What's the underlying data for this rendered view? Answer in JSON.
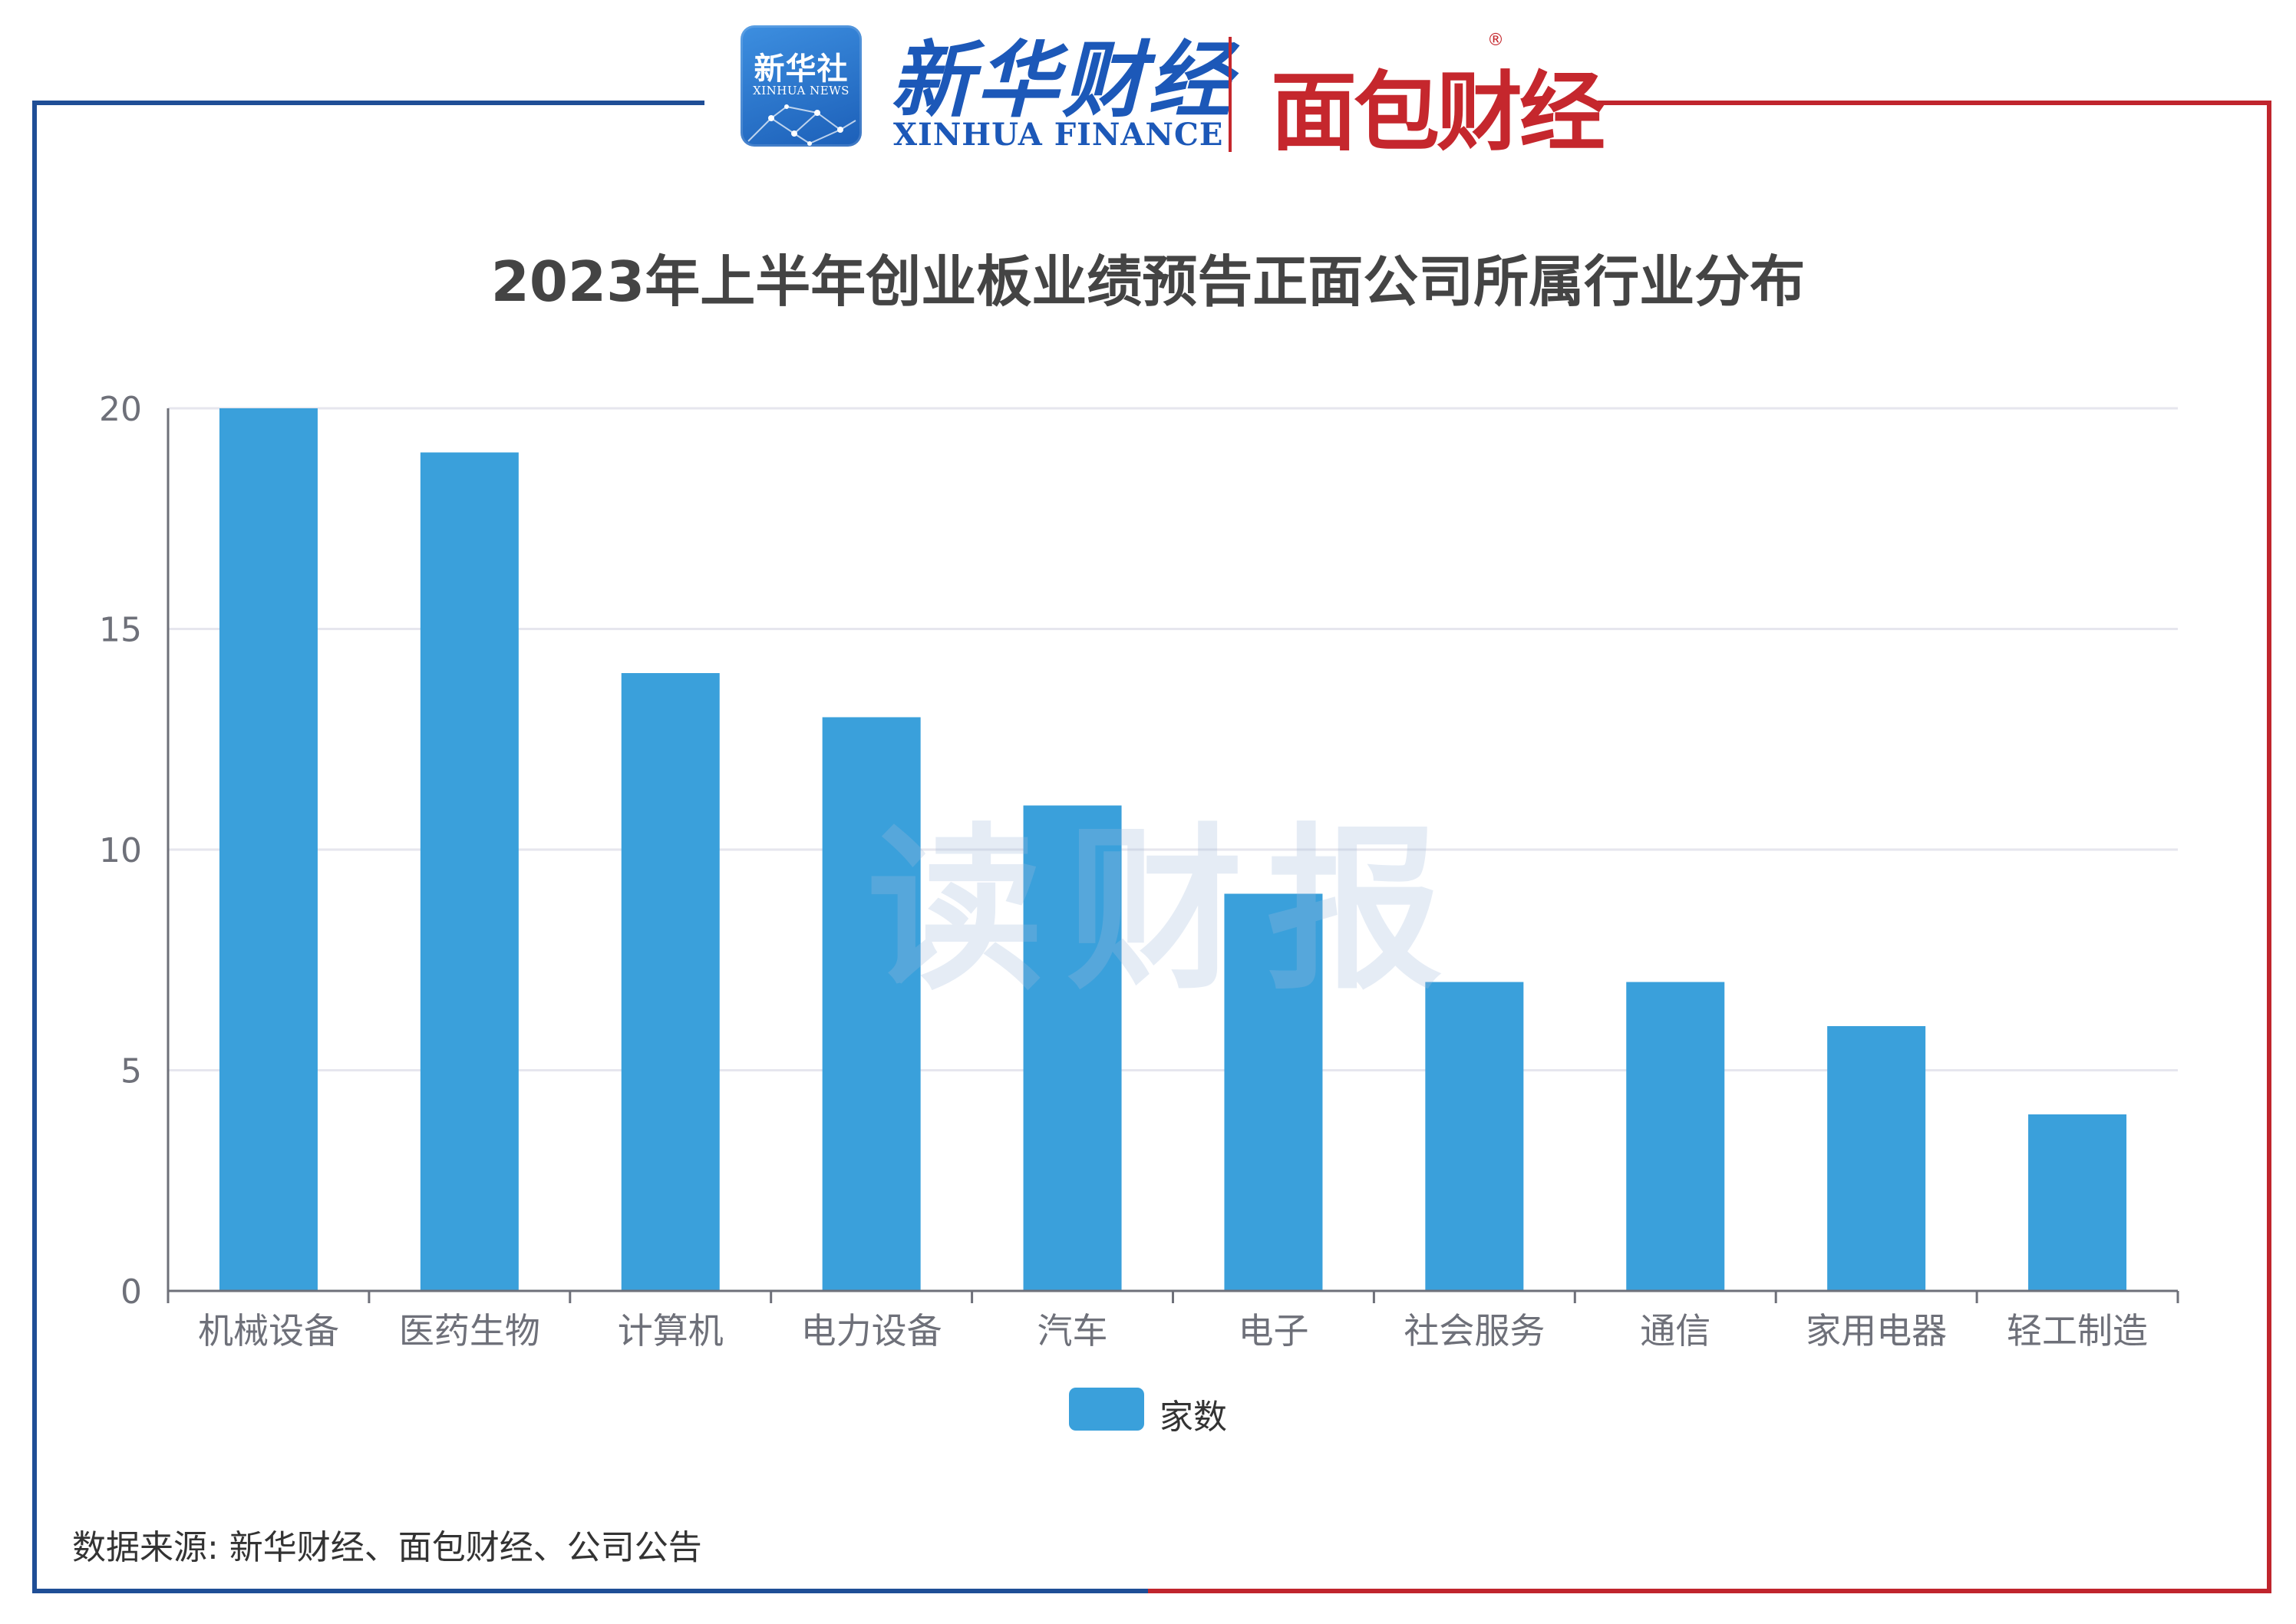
{
  "header": {
    "xinhua_badge_cn": "新华社",
    "xinhua_badge_en": "XINHUA NEWS",
    "xinhua_finance_cn": "新华财经",
    "xinhua_finance_en": "XINHUA FINANCE",
    "mianbao_logo": "面包财经",
    "mianbao_reg": "®"
  },
  "watermark": "读财报",
  "source": "数据来源: 新华财经、面包财经、公司公告",
  "colors": {
    "bar": "#3aa0db",
    "frame_left": "#1f4e96",
    "frame_right": "#c0252d",
    "grid": "#e6e6ee",
    "axis": "#6e7079"
  },
  "chart_data": {
    "type": "bar",
    "title": "2023年上半年创业板业绩预告正面公司所属行业分布",
    "xlabel": "",
    "ylabel": "",
    "categories": [
      "机械设备",
      "医药生物",
      "计算机",
      "电力设备",
      "汽车",
      "电子",
      "社会服务",
      "通信",
      "家用电器",
      "轻工制造"
    ],
    "series": [
      {
        "name": "家数",
        "values": [
          20,
          19,
          14,
          13,
          11,
          9,
          7,
          7,
          6,
          4
        ]
      }
    ],
    "ylim": [
      0,
      20
    ],
    "yticks": [
      "0",
      "5",
      "10",
      "15",
      "20"
    ],
    "grid": true,
    "legend_position": "bottom-center"
  }
}
